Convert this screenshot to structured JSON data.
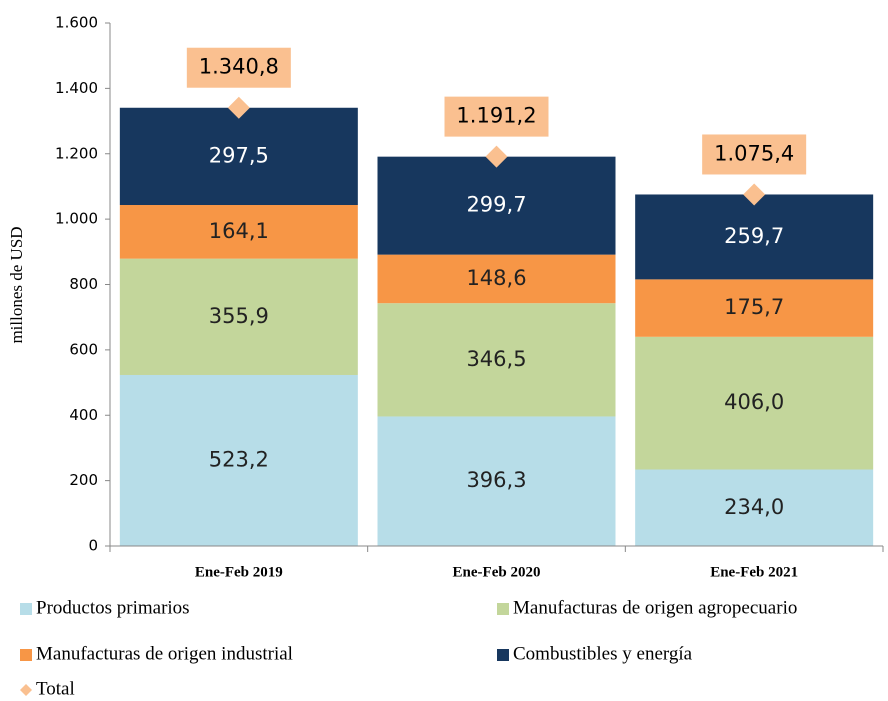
{
  "chart_data": {
    "type": "bar",
    "stacked": true,
    "ylabel": "millones de USD",
    "categories": [
      "Ene-Feb 2019",
      "Ene-Feb 2020",
      "Ene-Feb 2021"
    ],
    "series": [
      {
        "name": "Productos primarios",
        "color": "#b7dde8",
        "values": [
          523.2,
          396.3,
          234.0
        ],
        "value_labels": [
          "523,2",
          "396,3",
          "234,0"
        ]
      },
      {
        "name": "Manufacturas de origen agropecuario",
        "color": "#c3d69b",
        "values": [
          355.9,
          346.5,
          406.0
        ],
        "value_labels": [
          "355,9",
          "346,5",
          "406,0"
        ]
      },
      {
        "name": "Manufacturas de origen industrial",
        "color": "#f79646",
        "values": [
          164.1,
          148.6,
          175.7
        ],
        "value_labels": [
          "164,1",
          "148,6",
          "175,7"
        ]
      },
      {
        "name": "Combustibles y energía",
        "color": "#17375e",
        "values": [
          297.5,
          299.7,
          259.7
        ],
        "value_labels": [
          "297,5",
          "299,7",
          "259,7"
        ]
      },
      {
        "name": "Total",
        "type": "scatter",
        "marker": "diamond",
        "color": "#fac090",
        "values": [
          1340.8,
          1191.2,
          1075.4
        ],
        "value_labels": [
          "1.340,8",
          "1.191,2",
          "1.075,4"
        ]
      }
    ],
    "ylim": [
      0,
      1600
    ],
    "yticks": [
      0,
      200,
      400,
      600,
      800,
      {
        "value": 1000,
        "label": "1.000"
      },
      {
        "value": 1200,
        "label": "1.200"
      },
      {
        "value": 1400,
        "label": "1.400"
      },
      {
        "value": 1600,
        "label": "1.600"
      }
    ],
    "grid": false
  }
}
